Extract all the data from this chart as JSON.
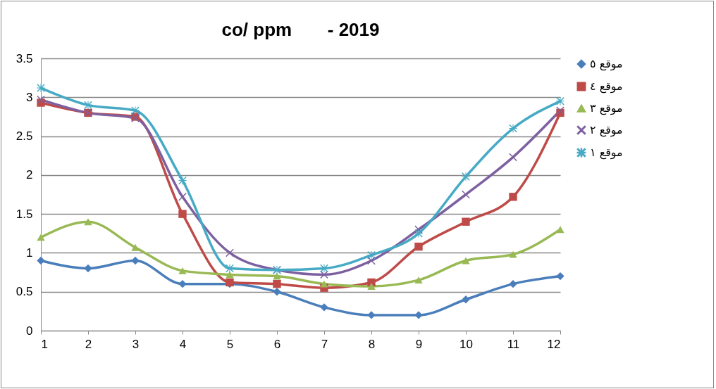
{
  "chart_data": {
    "type": "line",
    "title": "co/ ppm       - 2019",
    "x": [
      1,
      2,
      3,
      4,
      5,
      6,
      7,
      8,
      9,
      10,
      11,
      12
    ],
    "xlim": [
      1,
      12
    ],
    "xticks": [
      1,
      2,
      3,
      4,
      5,
      6,
      7,
      8,
      9,
      10,
      11,
      12
    ],
    "ylim": [
      0,
      3.5
    ],
    "yticks": [
      0,
      0.5,
      1,
      1.5,
      2,
      2.5,
      3,
      3.5
    ],
    "grid": "y",
    "legend": "right",
    "series": [
      {
        "name": "موقع ٥",
        "color": "#4a7ebb",
        "marker": "diamond",
        "values": [
          0.9,
          0.8,
          0.9,
          0.6,
          0.6,
          0.5,
          0.3,
          0.2,
          0.2,
          0.4,
          0.6,
          0.7
        ]
      },
      {
        "name": "موقع ٤",
        "color": "#be4b48",
        "marker": "square",
        "values": [
          2.93,
          2.8,
          2.75,
          1.5,
          0.62,
          0.6,
          0.55,
          0.62,
          1.08,
          1.4,
          1.72,
          2.8
        ]
      },
      {
        "name": "موقع ٣",
        "color": "#98b954",
        "marker": "triangle",
        "values": [
          1.2,
          1.4,
          1.07,
          0.77,
          0.72,
          0.7,
          0.6,
          0.57,
          0.65,
          0.9,
          0.98,
          1.3
        ]
      },
      {
        "name": "موقع ٢",
        "color": "#7d60a0",
        "marker": "cross",
        "values": [
          2.97,
          2.8,
          2.73,
          1.72,
          1.0,
          0.78,
          0.72,
          0.9,
          1.3,
          1.75,
          2.23,
          2.83
        ]
      },
      {
        "name": "موقع ١",
        "color": "#46aac5",
        "marker": "star",
        "values": [
          3.12,
          2.9,
          2.83,
          1.93,
          0.8,
          0.78,
          0.8,
          0.97,
          1.25,
          1.98,
          2.6,
          2.95
        ]
      }
    ]
  }
}
